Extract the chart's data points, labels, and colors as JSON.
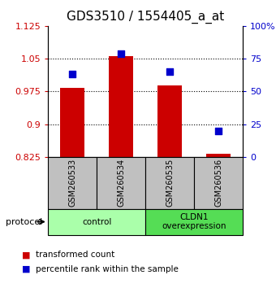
{
  "title": "GDS3510 / 1554405_a_at",
  "samples": [
    "GSM260533",
    "GSM260534",
    "GSM260535",
    "GSM260536"
  ],
  "red_values": [
    0.984,
    1.055,
    0.988,
    0.833
  ],
  "blue_values_pct": [
    63,
    79,
    65,
    20
  ],
  "ylim_left": [
    0.825,
    1.125
  ],
  "yticks_left": [
    0.825,
    0.9,
    0.975,
    1.05,
    1.125
  ],
  "ytick_labels_left": [
    "0.825",
    "0.9",
    "0.975",
    "1.05",
    "1.125"
  ],
  "ylim_right": [
    0,
    100
  ],
  "yticks_right": [
    0,
    25,
    50,
    75,
    100
  ],
  "ytick_labels_right": [
    "0",
    "25",
    "50",
    "75",
    "100%"
  ],
  "groups": [
    {
      "label": "control",
      "indices": [
        0,
        1
      ],
      "color": "#aaffaa"
    },
    {
      "label": "CLDN1\noverexpression",
      "indices": [
        2,
        3
      ],
      "color": "#55dd55"
    }
  ],
  "bar_color": "#cc0000",
  "dot_color": "#0000cc",
  "bar_width": 0.5,
  "dot_size": 40,
  "grid_color": "black",
  "bg_xtick_area": "#c0c0c0",
  "left_tick_color": "#cc0000",
  "right_tick_color": "#0000cc",
  "title_fontsize": 11,
  "tick_fontsize": 8,
  "legend_red": "transformed count",
  "legend_blue": "percentile rank within the sample",
  "protocol_label": "protocol"
}
